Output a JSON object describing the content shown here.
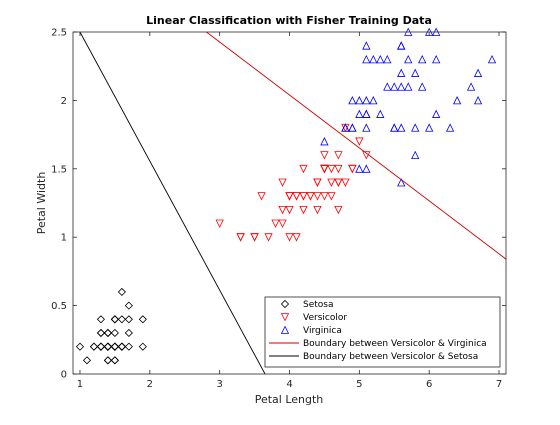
{
  "chart_data": {
    "type": "scatter",
    "title": "Linear Classification with Fisher Training Data",
    "xlabel": "Petal Length",
    "ylabel": "Petal Width",
    "xlim": [
      0.9,
      7.1
    ],
    "ylim": [
      0,
      2.5
    ],
    "xticks": [
      1,
      2,
      3,
      4,
      5,
      6,
      7
    ],
    "yticks": [
      0,
      0.5,
      1,
      1.5,
      2,
      2.5
    ],
    "ytick_labels": [
      "0",
      "0.5",
      "1",
      "1.5",
      "2",
      "2.5"
    ],
    "grid": false,
    "legend_position": "bottom-right",
    "series": [
      {
        "name": "Setosa",
        "marker": "diamond",
        "color": "#000000",
        "points": [
          [
            1.4,
            0.2
          ],
          [
            1.4,
            0.2
          ],
          [
            1.3,
            0.2
          ],
          [
            1.5,
            0.2
          ],
          [
            1.4,
            0.2
          ],
          [
            1.7,
            0.4
          ],
          [
            1.4,
            0.3
          ],
          [
            1.5,
            0.2
          ],
          [
            1.4,
            0.2
          ],
          [
            1.5,
            0.1
          ],
          [
            1.5,
            0.2
          ],
          [
            1.6,
            0.2
          ],
          [
            1.4,
            0.1
          ],
          [
            1.1,
            0.1
          ],
          [
            1.2,
            0.2
          ],
          [
            1.5,
            0.4
          ],
          [
            1.3,
            0.4
          ],
          [
            1.4,
            0.3
          ],
          [
            1.7,
            0.3
          ],
          [
            1.5,
            0.3
          ],
          [
            1.7,
            0.2
          ],
          [
            1.5,
            0.4
          ],
          [
            1.0,
            0.2
          ],
          [
            1.7,
            0.5
          ],
          [
            1.9,
            0.2
          ],
          [
            1.6,
            0.2
          ],
          [
            1.6,
            0.4
          ],
          [
            1.5,
            0.2
          ],
          [
            1.4,
            0.2
          ],
          [
            1.6,
            0.2
          ],
          [
            1.6,
            0.2
          ],
          [
            1.5,
            0.4
          ],
          [
            1.5,
            0.1
          ],
          [
            1.4,
            0.2
          ],
          [
            1.5,
            0.2
          ],
          [
            1.2,
            0.2
          ],
          [
            1.3,
            0.2
          ],
          [
            1.4,
            0.1
          ],
          [
            1.3,
            0.2
          ],
          [
            1.5,
            0.2
          ],
          [
            1.3,
            0.3
          ],
          [
            1.3,
            0.3
          ],
          [
            1.3,
            0.2
          ],
          [
            1.6,
            0.6
          ],
          [
            1.9,
            0.4
          ],
          [
            1.4,
            0.3
          ],
          [
            1.6,
            0.2
          ],
          [
            1.4,
            0.2
          ],
          [
            1.5,
            0.2
          ],
          [
            1.4,
            0.2
          ]
        ]
      },
      {
        "name": "Versicolor",
        "marker": "triangle-down",
        "color": "#ff0000",
        "points": [
          [
            4.7,
            1.4
          ],
          [
            4.5,
            1.5
          ],
          [
            4.9,
            1.5
          ],
          [
            4.0,
            1.3
          ],
          [
            4.6,
            1.5
          ],
          [
            4.5,
            1.3
          ],
          [
            4.7,
            1.6
          ],
          [
            3.3,
            1.0
          ],
          [
            4.6,
            1.3
          ],
          [
            3.9,
            1.4
          ],
          [
            3.5,
            1.0
          ],
          [
            4.2,
            1.5
          ],
          [
            4.0,
            1.0
          ],
          [
            4.7,
            1.4
          ],
          [
            3.6,
            1.3
          ],
          [
            4.4,
            1.4
          ],
          [
            4.5,
            1.5
          ],
          [
            4.1,
            1.0
          ],
          [
            4.5,
            1.5
          ],
          [
            3.9,
            1.1
          ],
          [
            4.8,
            1.8
          ],
          [
            4.0,
            1.3
          ],
          [
            4.9,
            1.5
          ],
          [
            4.7,
            1.2
          ],
          [
            4.3,
            1.3
          ],
          [
            4.4,
            1.4
          ],
          [
            4.8,
            1.4
          ],
          [
            5.0,
            1.7
          ],
          [
            4.5,
            1.5
          ],
          [
            3.5,
            1.0
          ],
          [
            3.8,
            1.1
          ],
          [
            3.7,
            1.0
          ],
          [
            3.9,
            1.2
          ],
          [
            5.1,
            1.6
          ],
          [
            4.5,
            1.5
          ],
          [
            4.5,
            1.6
          ],
          [
            4.7,
            1.5
          ],
          [
            4.4,
            1.3
          ],
          [
            4.1,
            1.3
          ],
          [
            4.0,
            1.3
          ],
          [
            4.4,
            1.2
          ],
          [
            4.6,
            1.4
          ],
          [
            4.0,
            1.2
          ],
          [
            3.3,
            1.0
          ],
          [
            4.2,
            1.3
          ],
          [
            4.2,
            1.2
          ],
          [
            4.2,
            1.3
          ],
          [
            4.3,
            1.3
          ],
          [
            3.0,
            1.1
          ],
          [
            4.1,
            1.3
          ]
        ]
      },
      {
        "name": "Virginica",
        "marker": "triangle-up",
        "color": "#0000ff",
        "points": [
          [
            6.0,
            2.5
          ],
          [
            5.1,
            1.9
          ],
          [
            5.9,
            2.1
          ],
          [
            5.6,
            1.8
          ],
          [
            5.8,
            2.2
          ],
          [
            6.6,
            2.1
          ],
          [
            4.5,
            1.7
          ],
          [
            6.3,
            1.8
          ],
          [
            5.8,
            1.8
          ],
          [
            6.1,
            2.5
          ],
          [
            5.1,
            2.0
          ],
          [
            5.3,
            1.9
          ],
          [
            5.5,
            2.1
          ],
          [
            5.0,
            2.0
          ],
          [
            5.1,
            2.4
          ],
          [
            5.3,
            2.3
          ],
          [
            5.5,
            1.8
          ],
          [
            6.7,
            2.2
          ],
          [
            6.9,
            2.3
          ],
          [
            5.0,
            1.5
          ],
          [
            5.7,
            2.3
          ],
          [
            4.9,
            2.0
          ],
          [
            6.7,
            2.0
          ],
          [
            4.9,
            1.8
          ],
          [
            5.7,
            2.1
          ],
          [
            6.0,
            1.8
          ],
          [
            4.8,
            1.8
          ],
          [
            4.9,
            1.8
          ],
          [
            5.6,
            2.1
          ],
          [
            5.8,
            1.6
          ],
          [
            6.1,
            1.9
          ],
          [
            6.4,
            2.0
          ],
          [
            5.6,
            2.2
          ],
          [
            5.1,
            1.5
          ],
          [
            5.6,
            1.4
          ],
          [
            6.1,
            2.3
          ],
          [
            5.6,
            2.4
          ],
          [
            5.5,
            1.8
          ],
          [
            4.8,
            1.8
          ],
          [
            5.4,
            2.1
          ],
          [
            5.6,
            2.4
          ],
          [
            5.1,
            2.3
          ],
          [
            5.1,
            1.9
          ],
          [
            5.9,
            2.3
          ],
          [
            5.7,
            2.5
          ],
          [
            5.2,
            2.3
          ],
          [
            5.0,
            1.9
          ],
          [
            5.2,
            2.0
          ],
          [
            5.4,
            2.3
          ],
          [
            5.1,
            1.8
          ]
        ]
      }
    ],
    "lines": [
      {
        "name": "Boundary between Versicolor & Virginica",
        "color": "#cc0000",
        "points": [
          [
            2.81,
            2.5
          ],
          [
            7.1,
            0.84
          ]
        ]
      },
      {
        "name": "Boundary between Versicolor & Setosa",
        "color": "#000000",
        "points": [
          [
            1.0,
            2.5
          ],
          [
            3.65,
            0
          ]
        ]
      }
    ]
  }
}
